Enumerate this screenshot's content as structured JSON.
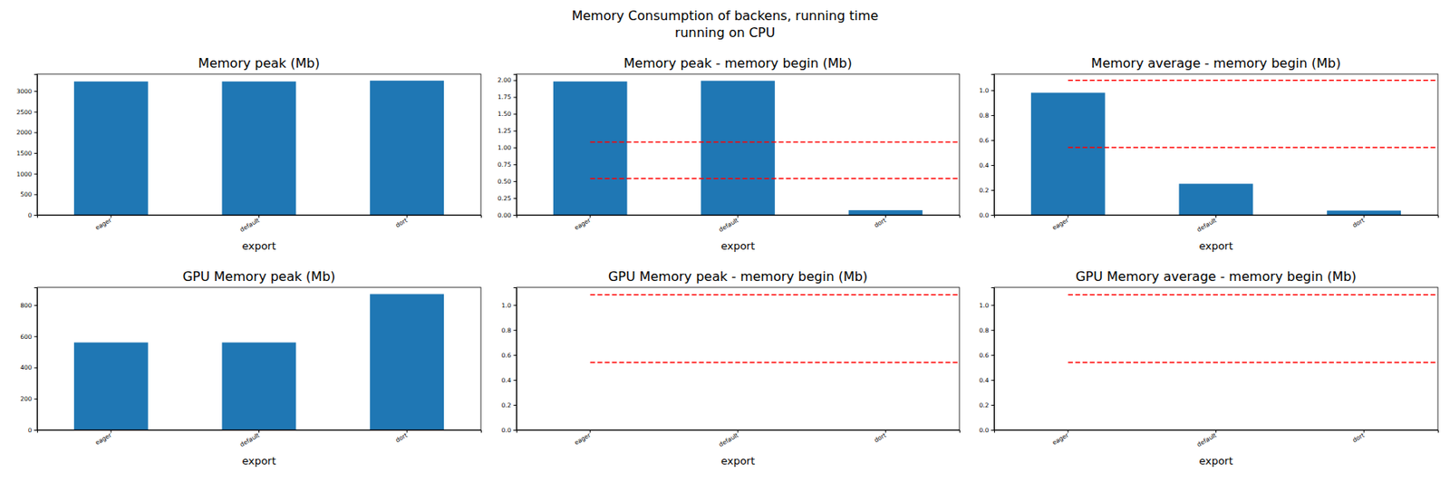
{
  "title": "Memory Consumption of backens, running time",
  "subtitle": "running on CPU",
  "chart_data": [
    {
      "type": "bar",
      "title": "Memory peak (Mb)",
      "x_label": "export",
      "categories": [
        "eager",
        "default",
        "dort"
      ],
      "values": [
        3230,
        3230,
        3250
      ],
      "color": "#1f77b4",
      "ylim": [
        0,
        3410
      ],
      "yticks": [
        0,
        500,
        1000,
        1500,
        2000,
        2500,
        3000
      ],
      "hlines": []
    },
    {
      "type": "bar",
      "title": "Memory peak - memory begin (Mb)",
      "x_label": "export",
      "categories": [
        "eager",
        "default",
        "dort"
      ],
      "values": [
        1.98,
        1.99,
        0.07
      ],
      "color": "#1f77b4",
      "ylim": [
        0,
        2.09
      ],
      "yticks": [
        {
          "value": 0,
          "label": "0.00"
        },
        {
          "value": 0.25,
          "label": "0.25"
        },
        {
          "value": 0.5,
          "label": "0.50"
        },
        {
          "value": 0.75,
          "label": "0.75"
        },
        {
          "value": 1,
          "label": "1.00"
        },
        {
          "value": 1.25,
          "label": "1.25"
        },
        {
          "value": 1.5,
          "label": "1.50"
        },
        {
          "value": 1.75,
          "label": "1.75"
        },
        {
          "value": 2,
          "label": "2.00"
        }
      ],
      "hlines": [
        0.54,
        1.08
      ]
    },
    {
      "type": "bar",
      "title": "Memory average - memory begin (Mb)",
      "x_label": "export",
      "categories": [
        "eager",
        "default",
        "dort"
      ],
      "values": [
        0.98,
        0.25,
        0.035
      ],
      "color": "#1f77b4",
      "ylim": [
        0,
        1.13
      ],
      "yticks": [
        {
          "value": 0,
          "label": "0.0"
        },
        0.2,
        0.4,
        0.6,
        0.8,
        {
          "value": 1,
          "label": "1.0"
        }
      ],
      "hlines": [
        0.54,
        1.08
      ]
    },
    {
      "type": "bar",
      "title": "GPU Memory peak (Mb)",
      "x_label": "export",
      "categories": [
        "eager",
        "default",
        "dort"
      ],
      "values": [
        560,
        560,
        870
      ],
      "color": "#1f77b4",
      "ylim": [
        0,
        913
      ],
      "yticks": [
        0,
        200,
        400,
        600,
        800
      ],
      "hlines": []
    },
    {
      "type": "bar",
      "title": "GPU Memory peak - memory begin (Mb)",
      "x_label": "export",
      "categories": [
        "eager",
        "default",
        "dort"
      ],
      "values": [
        0,
        0,
        0
      ],
      "color": "#1f77b4",
      "ylim": [
        0,
        1.14
      ],
      "yticks": [
        {
          "value": 0,
          "label": "0.0"
        },
        0.2,
        0.4,
        0.6,
        0.8,
        {
          "value": 1,
          "label": "1.0"
        }
      ],
      "hlines": [
        0.54,
        1.08
      ]
    },
    {
      "type": "bar",
      "title": "GPU Memory average - memory begin (Mb)",
      "x_label": "export",
      "categories": [
        "eager",
        "default",
        "dort"
      ],
      "values": [
        0,
        0,
        0
      ],
      "color": "#1f77b4",
      "ylim": [
        0,
        1.14
      ],
      "yticks": [
        {
          "value": 0,
          "label": "0.0"
        },
        0.2,
        0.4,
        0.6,
        0.8,
        {
          "value": 1,
          "label": "1.0"
        }
      ],
      "hlines": [
        0.54,
        1.08
      ]
    }
  ]
}
